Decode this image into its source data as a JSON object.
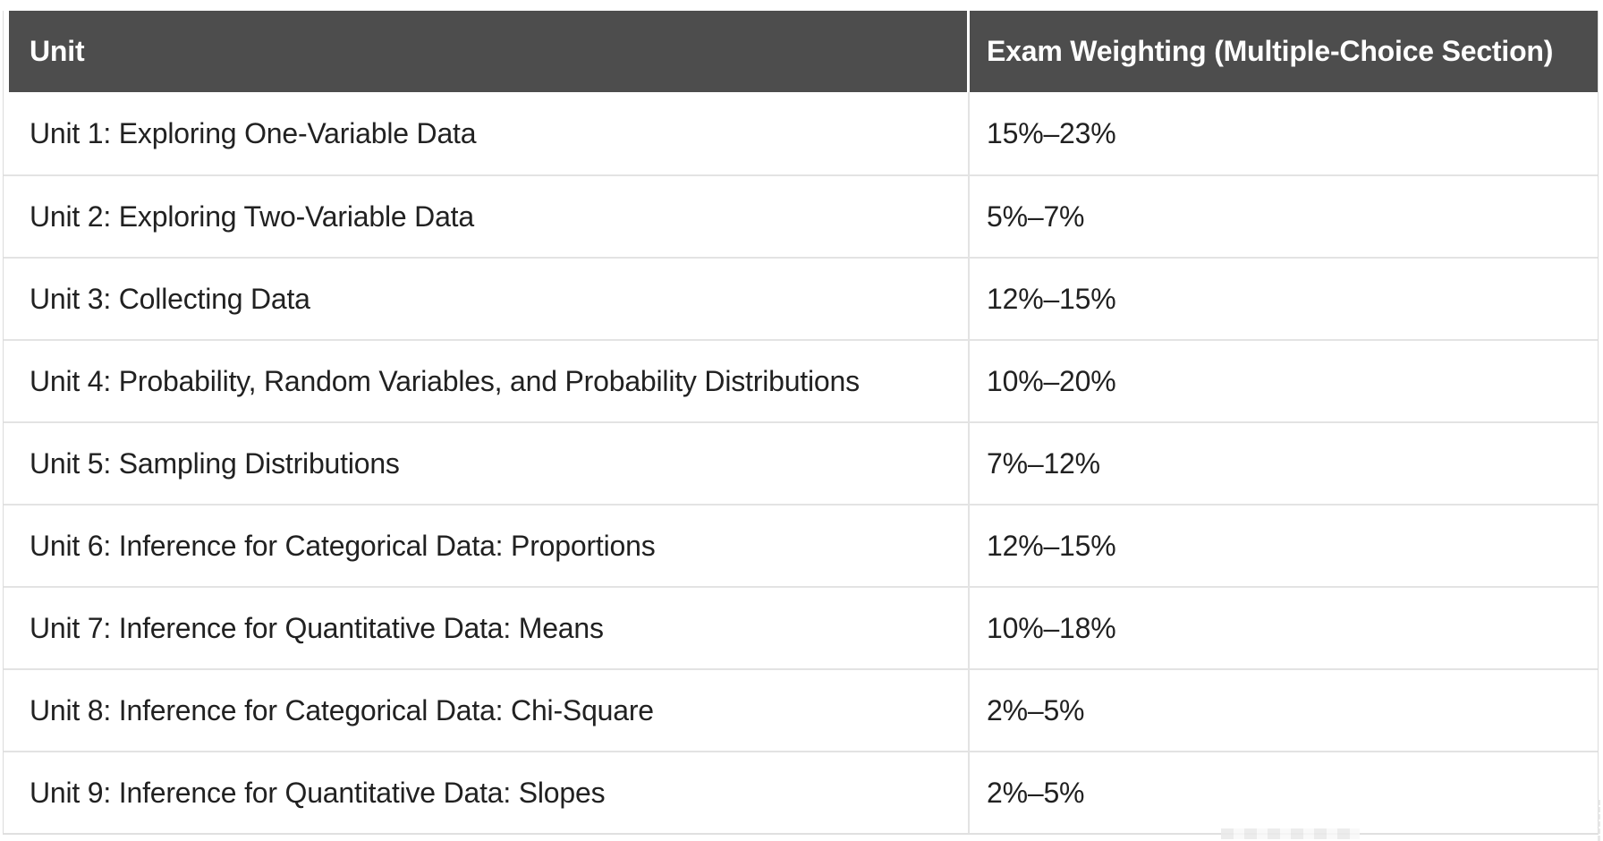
{
  "table": {
    "columns": [
      {
        "label": "Unit"
      },
      {
        "label": "Exam Weighting (Multiple-Choice Section)"
      }
    ],
    "rows": [
      {
        "unit": "Unit 1: Exploring One-Variable Data",
        "weight": "15%–23%"
      },
      {
        "unit": "Unit 2: Exploring Two-Variable Data",
        "weight": "5%–7%"
      },
      {
        "unit": "Unit 3: Collecting Data",
        "weight": "12%–15%"
      },
      {
        "unit": "Unit 4: Probability, Random Variables, and Probability Distributions",
        "weight": "10%–20%"
      },
      {
        "unit": "Unit 5: Sampling Distributions",
        "weight": "7%–12%"
      },
      {
        "unit": "Unit 6: Inference for Categorical Data: Proportions",
        "weight": "12%–15%"
      },
      {
        "unit": "Unit 7: Inference for Quantitative Data: Means",
        "weight": "10%–18%"
      },
      {
        "unit": "Unit 8: Inference for Categorical Data: Chi-Square",
        "weight": "2%–5%"
      },
      {
        "unit": "Unit 9: Inference for Quantitative Data: Slopes",
        "weight": "2%–5%"
      }
    ]
  },
  "colors": {
    "header_bg": "#4d4d4d",
    "header_text": "#ffffff",
    "body_text": "#212121",
    "row_border": "#e3e3e3",
    "page_bg": "#ffffff"
  }
}
